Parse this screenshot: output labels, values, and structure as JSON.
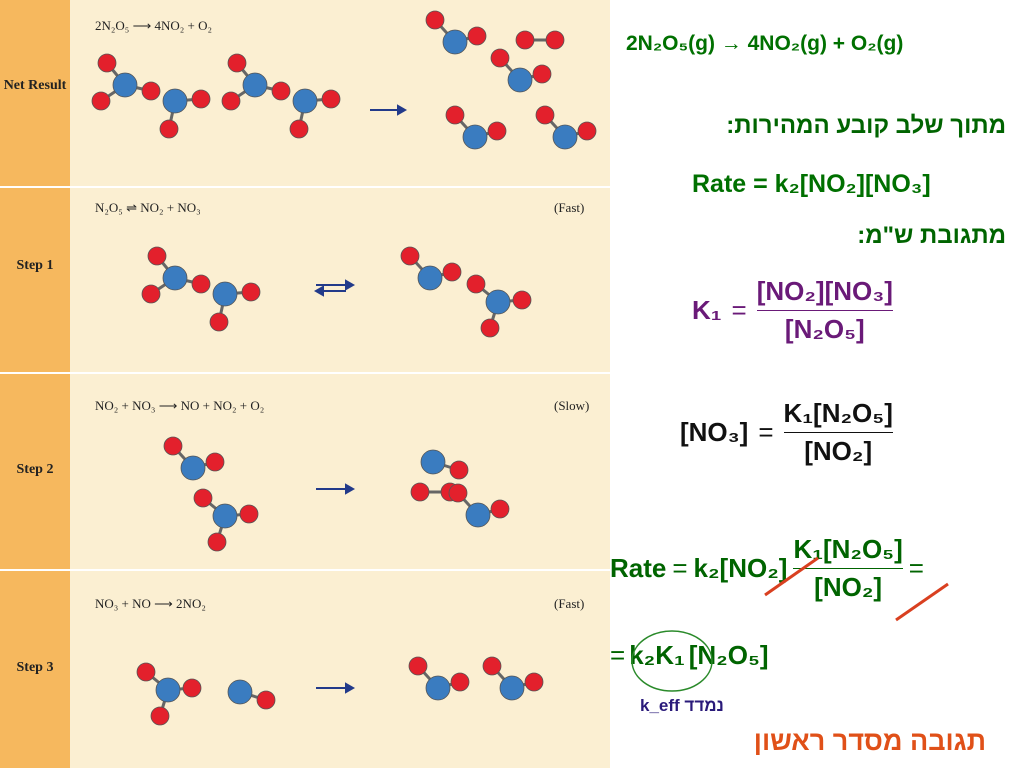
{
  "panel": {
    "rows": [
      {
        "label": "Net Result",
        "equation": "2N₂O₅ ⟶ 4NO₂ + O₂"
      },
      {
        "label": "Step 1",
        "equation": "N₂O₅ ⇌ NO₂ + NO₃",
        "speed": "(Fast)"
      },
      {
        "label": "Step 2",
        "equation": "NO₂ + NO₃ ⟶ NO + NO₂ + O₂",
        "speed": "(Slow)"
      },
      {
        "label": "Step 3",
        "equation": "NO₃ + NO ⟶ 2NO₂",
        "speed": "(Fast)"
      }
    ]
  },
  "slide": {
    "reaction": "2N₂O₅(g) → 4NO₂(g) + O₂(g)",
    "rds_heading": "מתוך שלב קובע המהירות:",
    "rate_law": "Rate = k₂[NO₂][NO₃]",
    "eq_heading": "מתגובת ש\"מ:",
    "k1_eq": {
      "lhs": "K₁",
      "op": "=",
      "num": "[NO₂][NO₃]",
      "den": "[N₂O₅]"
    },
    "no3_eq": {
      "lhs": "[NO₃]",
      "op": "=",
      "num": "K₁[N₂O₅]",
      "den": "[NO₂]"
    },
    "sub_eq": {
      "lhs": "Rate",
      "op": "=",
      "term": "k₂[NO₂]",
      "num": "K₁[N₂O₅]",
      "den": "[NO₂]",
      "trail": "="
    },
    "final_eq": {
      "op": "=",
      "k": "k₂K₁",
      "rest": "[N₂O₅]"
    },
    "keff_note": "k_eff נמדד",
    "conclusion": "תגובה מסדר ראשון"
  }
}
